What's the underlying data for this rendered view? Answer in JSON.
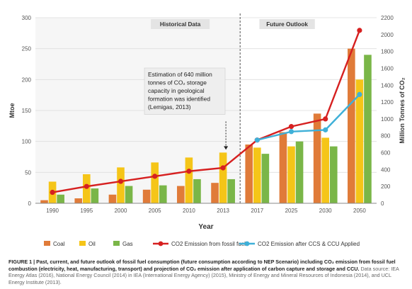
{
  "chart_data": {
    "type": "bar",
    "categories": [
      "1990",
      "1995",
      "2000",
      "2005",
      "2010",
      "2013",
      "2017",
      "2025",
      "2030",
      "2050"
    ],
    "series": [
      {
        "name": "Coal",
        "values": [
          5,
          8,
          14,
          22,
          28,
          33,
          95,
          115,
          145,
          250
        ],
        "color": "#e07b39",
        "axis": "left",
        "kind": "bar"
      },
      {
        "name": "Oil",
        "values": [
          35,
          47,
          58,
          66,
          74,
          82,
          90,
          92,
          106,
          200
        ],
        "color": "#f5c518",
        "axis": "left",
        "kind": "bar"
      },
      {
        "name": "Gas",
        "values": [
          14,
          24,
          28,
          29,
          39,
          39,
          80,
          100,
          92,
          240
        ],
        "color": "#7ab648",
        "axis": "left",
        "kind": "bar"
      },
      {
        "name": "CO2 Emission from fossil fuel",
        "values": [
          130,
          200,
          260,
          320,
          380,
          420,
          750,
          910,
          1000,
          2050
        ],
        "color": "#d62020",
        "axis": "right",
        "kind": "line"
      },
      {
        "name": "CO2 Emission after CCS & CCU Applied",
        "values": [
          null,
          null,
          null,
          null,
          null,
          null,
          750,
          850,
          870,
          1290
        ],
        "color": "#3fb0d8",
        "axis": "right",
        "kind": "line"
      }
    ],
    "ylabel": "Mtoe",
    "y2label": "Million Tonnes of CO₂",
    "xlabel": "Year",
    "ylim": [
      0,
      300
    ],
    "y2lim": [
      0,
      2200
    ],
    "yticks": [
      "0",
      "50",
      "100",
      "150",
      "200",
      "250",
      "300"
    ],
    "y2ticks": [
      "0",
      "200",
      "400",
      "600",
      "800",
      "1000",
      "1200",
      "1400",
      "1600",
      "1800",
      "2000",
      "2200"
    ],
    "regions": [
      {
        "label": "Historical Data",
        "categories": [
          "1990",
          "2013"
        ]
      },
      {
        "label": "Future Outlook",
        "categories": [
          "2017",
          "2050"
        ]
      }
    ],
    "annotation": {
      "lines": [
        "Estimation of 640 million",
        "tonnes of CO₂ storage",
        "capacity in geological",
        "formation  was identified",
        "(Lemigas, 2013)"
      ],
      "points_to": "2013"
    },
    "grid": true,
    "legend_position": "bottom"
  },
  "caption": {
    "label": "FIGURE 1 | Past, current, and future outlook of fossil fuel consumption (future consumption according to NEP Scenario) including CO₂ emission from fossil fuel combustion (electricity, heat, manufacturing, transport) and projection of CO₂ emission after application of carbon capture and storage and CCU.",
    "source": "Data source: IEA Energy Atlas (2016), National Energy Council (2014) in IEA (International Energy Agency) (2015), Ministry of Energy and Mineral Resources of Indonesia (2014), and UCL Energy Institute (2013)."
  }
}
